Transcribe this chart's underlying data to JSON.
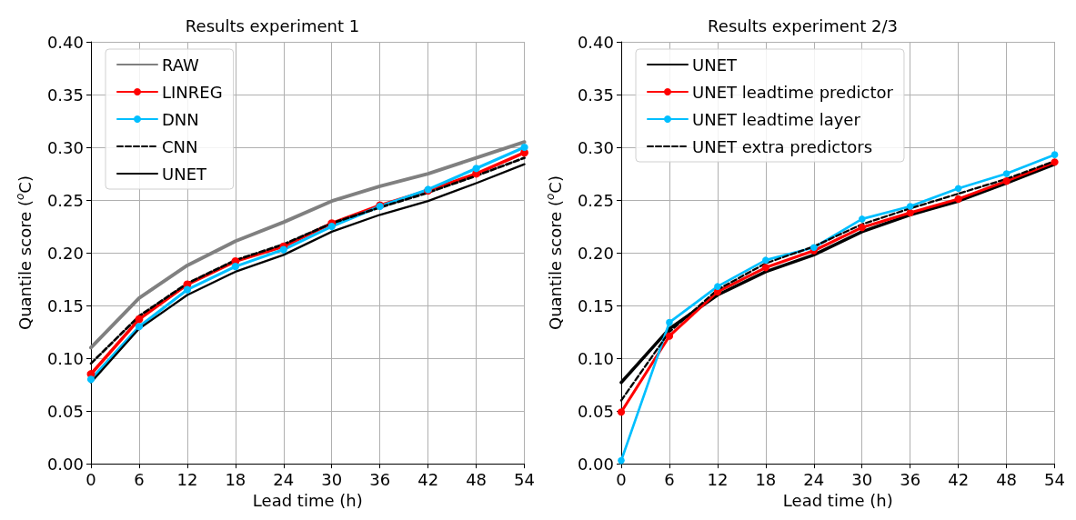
{
  "chart_data": [
    {
      "type": "line",
      "title": "Results experiment 1",
      "xlabel": "Lead time (h)",
      "ylabel": "Quantile score ($^{o}$C)",
      "x": [
        0,
        6,
        12,
        18,
        24,
        30,
        36,
        42,
        48,
        54
      ],
      "xlim": [
        0,
        54
      ],
      "xticks": [
        0,
        6,
        12,
        18,
        24,
        30,
        36,
        42,
        48,
        54
      ],
      "ylim": [
        0,
        0.4
      ],
      "yticks": [
        {
          "value": 0,
          "label": "0.00"
        },
        {
          "value": 0.05,
          "label": "0.05"
        },
        {
          "value": 0.1,
          "label": "0.10"
        },
        {
          "value": 0.15,
          "label": "0.15"
        },
        {
          "value": 0.2,
          "label": "0.20"
        },
        {
          "value": 0.25,
          "label": "0.25"
        },
        {
          "value": 0.3,
          "label": "0.30"
        },
        {
          "value": 0.35,
          "label": "0.35"
        },
        {
          "value": 0.4,
          "label": "0.40"
        }
      ],
      "grid": true,
      "legend": "top left",
      "series": [
        {
          "name": "RAW",
          "color": "#808080",
          "marker": "none",
          "line_style": "solid",
          "values": [
            0.11,
            0.157,
            0.188,
            0.211,
            0.229,
            0.249,
            0.263,
            0.275,
            0.29,
            0.305
          ]
        },
        {
          "name": "LINREG",
          "color": "#ff0000",
          "marker": "circle",
          "line_style": "solid",
          "values": [
            0.085,
            0.137,
            0.17,
            0.192,
            0.206,
            0.228,
            0.245,
            0.259,
            0.275,
            0.295
          ]
        },
        {
          "name": "DNN",
          "color": "#00bfff",
          "marker": "circle",
          "line_style": "solid",
          "values": [
            0.08,
            0.13,
            0.165,
            0.187,
            0.203,
            0.225,
            0.244,
            0.26,
            0.28,
            0.3
          ]
        },
        {
          "name": "CNN",
          "color": "#000000",
          "marker": "none",
          "line_style": "dashed",
          "values": [
            0.095,
            0.14,
            0.171,
            0.193,
            0.208,
            0.228,
            0.243,
            0.257,
            0.273,
            0.29
          ]
        },
        {
          "name": "UNET",
          "color": "#000000",
          "marker": "none",
          "line_style": "solid",
          "values": [
            0.077,
            0.128,
            0.16,
            0.182,
            0.198,
            0.22,
            0.236,
            0.249,
            0.266,
            0.284
          ]
        }
      ]
    },
    {
      "type": "line",
      "title": "Results experiment 2/3",
      "xlabel": "Lead time (h)",
      "ylabel": "Quantile score ($^{o}$C)",
      "x": [
        0,
        6,
        12,
        18,
        24,
        30,
        36,
        42,
        48,
        54
      ],
      "xlim": [
        0,
        54
      ],
      "xticks": [
        0,
        6,
        12,
        18,
        24,
        30,
        36,
        42,
        48,
        54
      ],
      "ylim": [
        0,
        0.4
      ],
      "yticks": [
        {
          "value": 0,
          "label": "0.00"
        },
        {
          "value": 0.05,
          "label": "0.05"
        },
        {
          "value": 0.1,
          "label": "0.10"
        },
        {
          "value": 0.15,
          "label": "0.15"
        },
        {
          "value": 0.2,
          "label": "0.20"
        },
        {
          "value": 0.25,
          "label": "0.25"
        },
        {
          "value": 0.3,
          "label": "0.30"
        },
        {
          "value": 0.35,
          "label": "0.35"
        },
        {
          "value": 0.4,
          "label": "0.40"
        }
      ],
      "grid": true,
      "legend": "top left",
      "series": [
        {
          "name": "UNET",
          "color": "#000000",
          "marker": "none",
          "line_style": "solid",
          "values": [
            0.077,
            0.128,
            0.16,
            0.182,
            0.198,
            0.22,
            0.236,
            0.249,
            0.266,
            0.284
          ]
        },
        {
          "name": "UNET leadtime predictor",
          "color": "#ff0000",
          "marker": "circle",
          "line_style": "solid",
          "values": [
            0.049,
            0.121,
            0.163,
            0.186,
            0.202,
            0.224,
            0.238,
            0.251,
            0.268,
            0.286
          ]
        },
        {
          "name": "UNET leadtime layer",
          "color": "#00bfff",
          "marker": "circle",
          "line_style": "solid",
          "values": [
            0.003,
            0.134,
            0.168,
            0.193,
            0.205,
            0.232,
            0.244,
            0.261,
            0.275,
            0.293
          ]
        },
        {
          "name": "UNET extra predictors",
          "color": "#000000",
          "marker": "none",
          "line_style": "dashed",
          "values": [
            0.06,
            0.125,
            0.165,
            0.19,
            0.206,
            0.227,
            0.242,
            0.256,
            0.27,
            0.287
          ]
        }
      ]
    }
  ]
}
